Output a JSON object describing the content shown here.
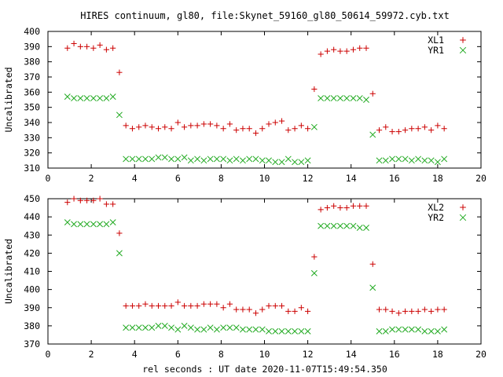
{
  "title": "HIRES continuum, gl80, file:Skynet_59160_gl80_50614_59972.cyb.txt",
  "xlabel": "rel seconds : UT date 2020-11-07T15:49:54.350",
  "colors": {
    "red_series": "#cc0000",
    "green_series": "#22aa22",
    "axes": "#000000"
  },
  "chart_data": [
    {
      "type": "scatter",
      "ylabel": "Uncalibrated",
      "xlim": [
        0,
        20
      ],
      "ylim": [
        310,
        400
      ],
      "xticks": [
        0,
        2,
        4,
        6,
        8,
        10,
        12,
        14,
        16,
        18,
        20
      ],
      "yticks": [
        310,
        320,
        330,
        340,
        350,
        360,
        370,
        380,
        390,
        400
      ],
      "grid": false,
      "legend_position": "top-right",
      "series": [
        {
          "name": "XL1",
          "marker": "plus",
          "color": "#cc0000",
          "x": [
            0.9,
            1.2,
            1.5,
            1.8,
            2.1,
            2.4,
            2.7,
            3.0,
            3.3,
            3.6,
            3.9,
            4.2,
            4.5,
            4.8,
            5.1,
            5.4,
            5.7,
            6.0,
            6.3,
            6.6,
            6.9,
            7.2,
            7.5,
            7.8,
            8.1,
            8.4,
            8.7,
            9.0,
            9.3,
            9.6,
            9.9,
            10.2,
            10.5,
            10.8,
            11.1,
            11.4,
            11.7,
            12.0,
            12.3,
            12.6,
            12.9,
            13.2,
            13.5,
            13.8,
            14.1,
            14.4,
            14.7,
            15.0,
            15.3,
            15.6,
            15.9,
            16.2,
            16.5,
            16.8,
            17.1,
            17.4,
            17.7,
            18.0,
            18.3
          ],
          "y": [
            389,
            392,
            390,
            390,
            389,
            391,
            388,
            389,
            373,
            338,
            336,
            337,
            338,
            337,
            336,
            337,
            336,
            340,
            337,
            338,
            338,
            339,
            339,
            338,
            336,
            339,
            335,
            336,
            336,
            333,
            336,
            339,
            340,
            341,
            335,
            336,
            338,
            336,
            362,
            385,
            387,
            388,
            387,
            387,
            388,
            389,
            389,
            359,
            335,
            337,
            334,
            334,
            335,
            336,
            336,
            337,
            335,
            338,
            336
          ]
        },
        {
          "name": "YR1",
          "marker": "x",
          "color": "#22aa22",
          "x": [
            0.9,
            1.2,
            1.5,
            1.8,
            2.1,
            2.4,
            2.7,
            3.0,
            3.3,
            3.6,
            3.9,
            4.2,
            4.5,
            4.8,
            5.1,
            5.4,
            5.7,
            6.0,
            6.3,
            6.6,
            6.9,
            7.2,
            7.5,
            7.8,
            8.1,
            8.4,
            8.7,
            9.0,
            9.3,
            9.6,
            9.9,
            10.2,
            10.5,
            10.8,
            11.1,
            11.4,
            11.7,
            12.0,
            12.3,
            12.6,
            12.9,
            13.2,
            13.5,
            13.8,
            14.1,
            14.4,
            14.7,
            15.0,
            15.3,
            15.6,
            15.9,
            16.2,
            16.5,
            16.8,
            17.1,
            17.4,
            17.7,
            18.0,
            18.3
          ],
          "y": [
            357,
            356,
            356,
            356,
            356,
            356,
            356,
            357,
            345,
            316,
            316,
            316,
            316,
            316,
            317,
            317,
            316,
            316,
            317,
            315,
            316,
            315,
            316,
            316,
            316,
            315,
            316,
            315,
            316,
            316,
            315,
            315,
            314,
            314,
            316,
            314,
            314,
            315,
            337,
            356,
            356,
            356,
            356,
            356,
            356,
            356,
            355,
            332,
            315,
            315,
            316,
            316,
            316,
            315,
            316,
            315,
            315,
            314,
            316
          ]
        }
      ]
    },
    {
      "type": "scatter",
      "ylabel": "Uncalibrated",
      "xlim": [
        0,
        20
      ],
      "ylim": [
        370,
        450
      ],
      "xticks": [
        0,
        2,
        4,
        6,
        8,
        10,
        12,
        14,
        16,
        18,
        20
      ],
      "yticks": [
        370,
        380,
        390,
        400,
        410,
        420,
        430,
        440,
        450
      ],
      "grid": false,
      "legend_position": "top-right",
      "series": [
        {
          "name": "XL2",
          "marker": "plus",
          "color": "#cc0000",
          "x": [
            0.9,
            1.2,
            1.5,
            1.8,
            2.1,
            2.4,
            2.7,
            3.0,
            3.3,
            3.6,
            3.9,
            4.2,
            4.5,
            4.8,
            5.1,
            5.4,
            5.7,
            6.0,
            6.3,
            6.6,
            6.9,
            7.2,
            7.5,
            7.8,
            8.1,
            8.4,
            8.7,
            9.0,
            9.3,
            9.6,
            9.9,
            10.2,
            10.5,
            10.8,
            11.1,
            11.4,
            11.7,
            12.0,
            12.3,
            12.6,
            12.9,
            13.2,
            13.5,
            13.8,
            14.1,
            14.4,
            14.7,
            15.0,
            15.3,
            15.6,
            15.9,
            16.2,
            16.5,
            16.8,
            17.1,
            17.4,
            17.7,
            18.0,
            18.3
          ],
          "y": [
            448,
            450,
            449,
            449,
            449,
            450,
            447,
            447,
            431,
            391,
            391,
            391,
            392,
            391,
            391,
            391,
            391,
            393,
            391,
            391,
            391,
            392,
            392,
            392,
            390,
            392,
            389,
            389,
            389,
            387,
            389,
            391,
            391,
            391,
            388,
            388,
            390,
            388,
            418,
            444,
            445,
            446,
            445,
            445,
            446,
            446,
            446,
            414,
            389,
            389,
            388,
            387,
            388,
            388,
            388,
            389,
            388,
            389,
            389
          ]
        },
        {
          "name": "YR2",
          "marker": "x",
          "color": "#22aa22",
          "x": [
            0.9,
            1.2,
            1.5,
            1.8,
            2.1,
            2.4,
            2.7,
            3.0,
            3.3,
            3.6,
            3.9,
            4.2,
            4.5,
            4.8,
            5.1,
            5.4,
            5.7,
            6.0,
            6.3,
            6.6,
            6.9,
            7.2,
            7.5,
            7.8,
            8.1,
            8.4,
            8.7,
            9.0,
            9.3,
            9.6,
            9.9,
            10.2,
            10.5,
            10.8,
            11.1,
            11.4,
            11.7,
            12.0,
            12.3,
            12.6,
            12.9,
            13.2,
            13.5,
            13.8,
            14.1,
            14.4,
            14.7,
            15.0,
            15.3,
            15.6,
            15.9,
            16.2,
            16.5,
            16.8,
            17.1,
            17.4,
            17.7,
            18.0,
            18.3
          ],
          "y": [
            437,
            436,
            436,
            436,
            436,
            436,
            436,
            437,
            420,
            379,
            379,
            379,
            379,
            379,
            380,
            380,
            379,
            378,
            380,
            379,
            378,
            378,
            379,
            378,
            379,
            379,
            379,
            378,
            378,
            378,
            378,
            377,
            377,
            377,
            377,
            377,
            377,
            377,
            409,
            435,
            435,
            435,
            435,
            435,
            435,
            434,
            434,
            401,
            377,
            377,
            378,
            378,
            378,
            378,
            378,
            377,
            377,
            377,
            378
          ]
        }
      ]
    }
  ]
}
